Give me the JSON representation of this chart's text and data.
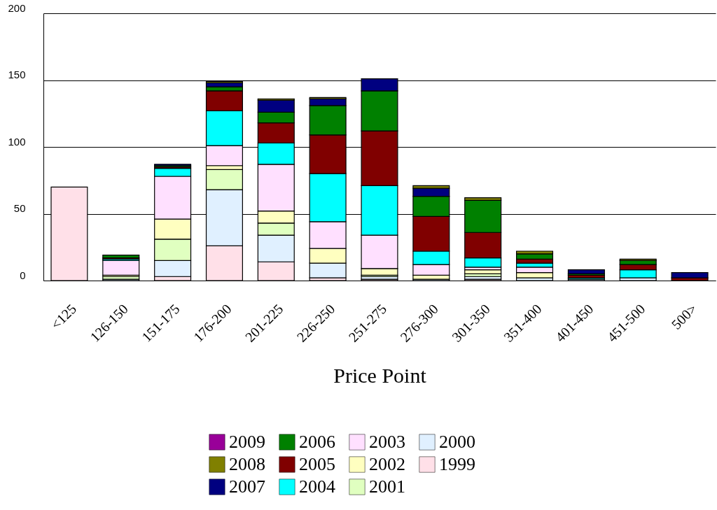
{
  "chart_data": {
    "type": "bar",
    "stacked": true,
    "xlabel": "Price Point",
    "categories": [
      "<125",
      "126-150",
      "151-175",
      "176-200",
      "201-225",
      "226-250",
      "251-275",
      "276-300",
      "301-350",
      "351-400",
      "401-450",
      "451-500",
      "500>"
    ],
    "ylim": [
      0,
      200
    ],
    "yticks": [
      0,
      50,
      100,
      150,
      200
    ],
    "grid": "y",
    "legend": "bottom",
    "series": [
      {
        "name": "1999",
        "color": "#ffe0e8",
        "values": [
          70,
          0,
          3,
          26,
          14,
          2,
          1,
          0,
          1,
          0,
          0,
          0,
          0
        ]
      },
      {
        "name": "2000",
        "color": "#e0f0ff",
        "values": [
          0,
          1,
          12,
          42,
          20,
          11,
          2,
          1,
          2,
          2,
          1,
          2,
          0
        ]
      },
      {
        "name": "2001",
        "color": "#e0ffc0",
        "values": [
          0,
          2,
          16,
          15,
          9,
          0,
          1,
          0,
          2,
          0,
          0,
          0,
          0
        ]
      },
      {
        "name": "2002",
        "color": "#ffffc0",
        "values": [
          0,
          1,
          15,
          3,
          9,
          11,
          5,
          3,
          3,
          4,
          0,
          0,
          0
        ]
      },
      {
        "name": "2003",
        "color": "#ffe0ff",
        "values": [
          0,
          11,
          32,
          15,
          35,
          20,
          25,
          8,
          2,
          4,
          0,
          0,
          0
        ]
      },
      {
        "name": "2004",
        "color": "#00ffff",
        "values": [
          0,
          1,
          6,
          26,
          16,
          36,
          37,
          10,
          7,
          3,
          1,
          6,
          0
        ]
      },
      {
        "name": "2005",
        "color": "#800000",
        "values": [
          0,
          1,
          1,
          15,
          15,
          29,
          41,
          26,
          19,
          3,
          2,
          4,
          2
        ]
      },
      {
        "name": "2006",
        "color": "#008000",
        "values": [
          0,
          2,
          1,
          3,
          8,
          22,
          30,
          15,
          24,
          4,
          1,
          3,
          0
        ]
      },
      {
        "name": "2007",
        "color": "#000080",
        "values": [
          0,
          0,
          1,
          3,
          9,
          5,
          9,
          6,
          0,
          0,
          3,
          0,
          4
        ]
      },
      {
        "name": "2008",
        "color": "#808000",
        "values": [
          0,
          0,
          0,
          1,
          1,
          1,
          0,
          2,
          2,
          2,
          0,
          1,
          0
        ]
      },
      {
        "name": "2009",
        "color": "#990099",
        "values": [
          0,
          0,
          0,
          0,
          0,
          0,
          0,
          0,
          0,
          0,
          0,
          0,
          0
        ]
      }
    ]
  }
}
